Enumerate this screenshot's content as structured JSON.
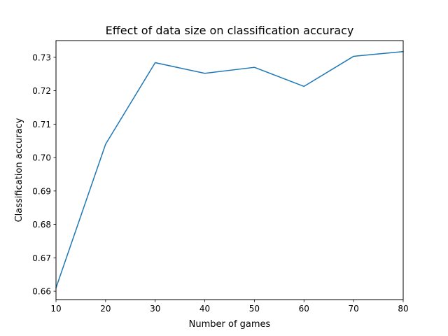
{
  "chart_data": {
    "type": "line",
    "title": "Effect of data size on classification accuracy",
    "xlabel": "Number of games",
    "ylabel": "Classification accuracy",
    "xlim": [
      10,
      80
    ],
    "ylim": [
      0.6575,
      0.735
    ],
    "x_ticks": [
      10,
      20,
      30,
      40,
      50,
      60,
      70,
      80
    ],
    "x_tick_labels": [
      "10",
      "20",
      "30",
      "40",
      "50",
      "60",
      "70",
      "80"
    ],
    "y_ticks": [
      0.66,
      0.67,
      0.68,
      0.69,
      0.7,
      0.71,
      0.72,
      0.73
    ],
    "y_tick_labels": [
      "0.66",
      "0.67",
      "0.68",
      "0.69",
      "0.70",
      "0.71",
      "0.72",
      "0.73"
    ],
    "grid": false,
    "series": [
      {
        "x": [
          10,
          20,
          30,
          40,
          50,
          60,
          70,
          80
        ],
        "y": [
          0.661,
          0.704,
          0.7284,
          0.7252,
          0.727,
          0.7213,
          0.7303,
          0.7317
        ],
        "color": "#1f77b4"
      }
    ]
  }
}
